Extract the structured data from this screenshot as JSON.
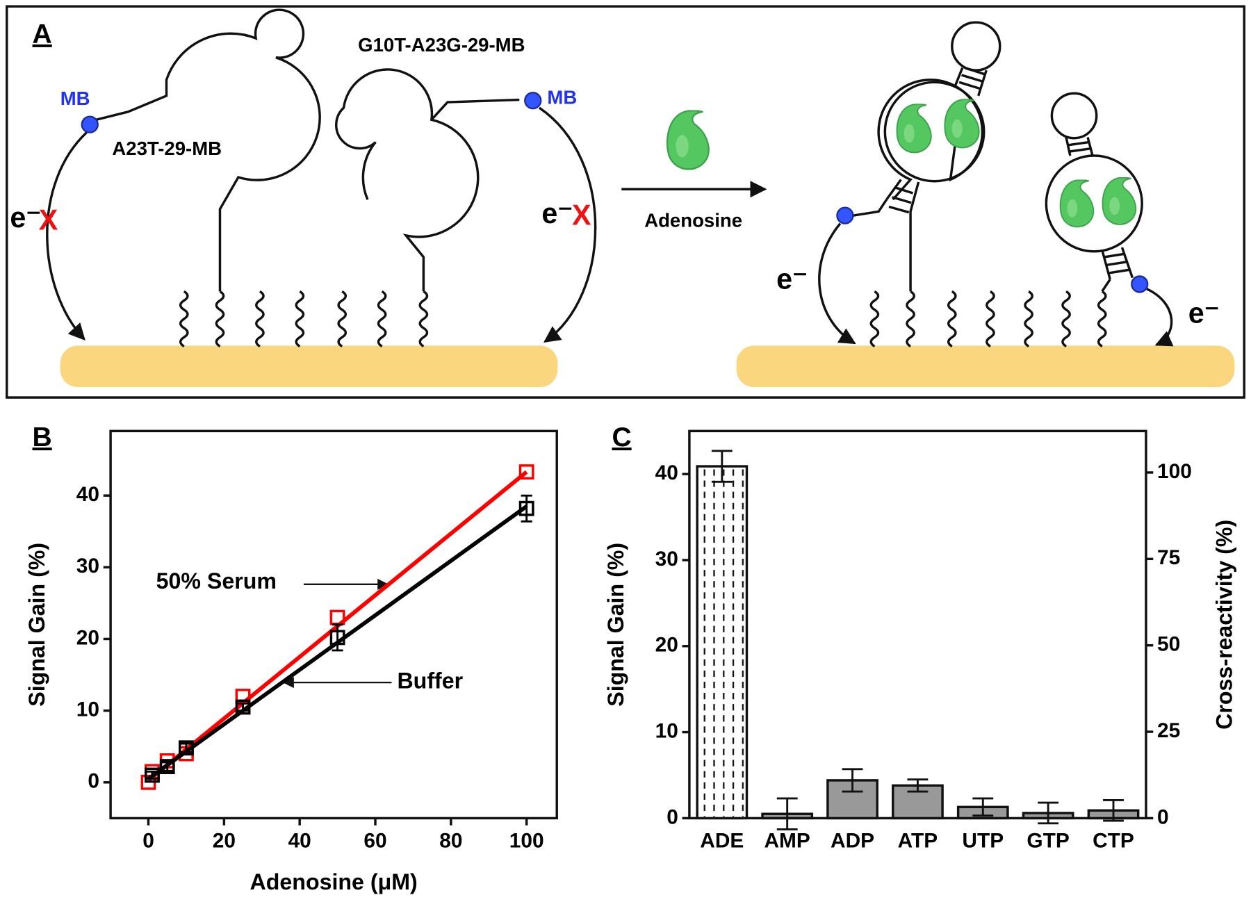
{
  "panel_labels": [
    "A",
    "B",
    "C"
  ],
  "diagram": {
    "probe_left": "A23T-29-MB",
    "probe_right": "G10T-A23G-29-MB",
    "redox_label": "MB",
    "electron": "e⁻",
    "blocked": "X",
    "arrow_label": "Adenosine"
  },
  "chart_data": [
    {
      "type": "scatter",
      "xlabel": "Adenosine (μM)",
      "ylabel": "Signal Gain (%)",
      "xlim": [
        -10,
        108
      ],
      "ylim": [
        -5,
        49
      ],
      "xticks": [
        0,
        20,
        40,
        60,
        80,
        100
      ],
      "yticks": [
        0,
        10,
        20,
        30,
        40
      ],
      "series": [
        {
          "name": "50% Serum",
          "color": "#ff0000",
          "x": [
            0,
            1,
            5,
            10,
            25,
            50,
            100
          ],
          "values": [
            0,
            1.5,
            3,
            4,
            12,
            23,
            43.3
          ],
          "fit": {
            "x": [
              0,
              100
            ],
            "values": [
              0.3,
              43.3
            ]
          }
        },
        {
          "name": "Buffer",
          "color": "#000000",
          "x": [
            1,
            5,
            10,
            25,
            50,
            100
          ],
          "values": [
            1,
            2.2,
            4.8,
            10.5,
            20.2,
            38.2
          ],
          "errors": [
            0.5,
            0.6,
            0.6,
            0.5,
            1.8,
            1.8
          ],
          "fit": {
            "x": [
              0,
              100
            ],
            "values": [
              0.5,
              38.5
            ]
          }
        }
      ]
    },
    {
      "type": "bar",
      "ylabel": "Signal Gain (%)",
      "y2label": "Cross-reactivity (%)",
      "categories": [
        "ADE",
        "AMP",
        "ADP",
        "ATP",
        "UTP",
        "GTP",
        "CTP"
      ],
      "values": [
        40.9,
        0.5,
        4.4,
        3.8,
        1.3,
        0.6,
        0.9
      ],
      "errors": [
        1.8,
        1.8,
        1.3,
        0.7,
        1.0,
        1.2,
        1.2
      ],
      "colors": [
        "#ffffff",
        "#999999",
        "#999999",
        "#999999",
        "#999999",
        "#999999",
        "#999999"
      ],
      "hatch": [
        true,
        false,
        false,
        false,
        false,
        false,
        false
      ],
      "ylim": [
        0,
        45
      ],
      "yticks": [
        0,
        10,
        20,
        30,
        40
      ],
      "y2lim": [
        0,
        112
      ],
      "y2ticks": [
        0,
        25,
        50,
        75,
        100
      ]
    }
  ]
}
